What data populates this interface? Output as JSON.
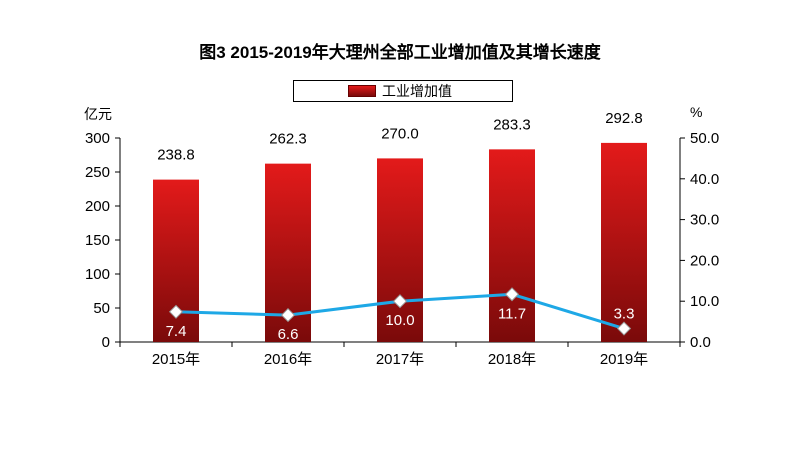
{
  "chart_data": {
    "type": "bar",
    "title": "图3  2015-2019年大理州全部工业增加值及其增长速度",
    "categories": [
      "2015年",
      "2016年",
      "2017年",
      "2018年",
      "2019年"
    ],
    "series": [
      {
        "name": "工业增加值",
        "type": "bar",
        "axis": "left",
        "values": [
          238.8,
          262.3,
          270.0,
          283.3,
          292.8
        ],
        "labels": [
          "238.8",
          "262.3",
          "270.0",
          "283.3",
          "292.8"
        ]
      },
      {
        "name": "",
        "type": "line",
        "axis": "right",
        "values": [
          7.4,
          6.6,
          10.0,
          11.7,
          3.3
        ],
        "labels": [
          "7.4",
          "6.6",
          "10.0",
          "11.7",
          "3.3"
        ]
      }
    ],
    "y_left": {
      "unit": "亿元",
      "ylim": [
        0,
        300
      ],
      "ticks": [
        "0",
        "50",
        "100",
        "150",
        "200",
        "250",
        "300"
      ]
    },
    "y_right": {
      "unit": "%",
      "ylim": [
        0,
        50
      ],
      "ticks": [
        "0.0",
        "10.0",
        "20.0",
        "30.0",
        "40.0",
        "50.0"
      ]
    },
    "legend_position": "top-center",
    "grid": false,
    "colors": {
      "bar_top": "#e31a1a",
      "bar_bottom": "#7a0a0a",
      "line": "#1ea8e6",
      "marker": "#ffffff"
    }
  }
}
